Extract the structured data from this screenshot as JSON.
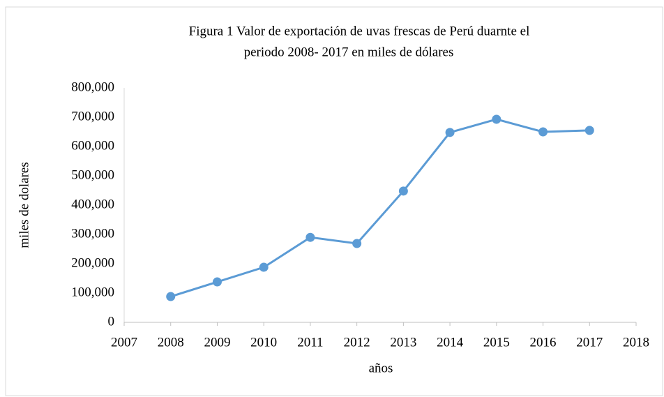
{
  "chart_data": {
    "type": "line",
    "title": [
      "Figura 1 Valor de exportación de uvas frescas de Perú duarnte el",
      "periodo 2008- 2017 en miles de dólares"
    ],
    "x_label": "años",
    "y_label": "miles de dolares",
    "x": [
      2008,
      2009,
      2010,
      2011,
      2012,
      2013,
      2014,
      2015,
      2016,
      2017
    ],
    "series": [
      {
        "name": "Valor de exportación",
        "color": "#5b9bd5",
        "values": [
          88000,
          138000,
          188000,
          290000,
          269000,
          448000,
          648000,
          693000,
          650000,
          655000
        ]
      }
    ],
    "xlim": [
      2007,
      2018
    ],
    "xticks": [
      2007,
      2008,
      2009,
      2010,
      2011,
      2012,
      2013,
      2014,
      2015,
      2016,
      2017,
      2018
    ],
    "ylim": [
      0,
      800000
    ],
    "yticks": [
      0,
      {
        "value": 100000,
        "label": "100,000"
      },
      {
        "value": 200000,
        "label": "200,000"
      },
      {
        "value": 300000,
        "label": "300,000"
      },
      {
        "value": 400000,
        "label": "400,000"
      },
      {
        "value": 500000,
        "label": "500,000"
      },
      {
        "value": 600000,
        "label": "600,000"
      },
      {
        "value": 700000,
        "label": "700,000"
      },
      {
        "value": 800000,
        "label": "800,000"
      }
    ],
    "grid": false,
    "legend": false
  }
}
